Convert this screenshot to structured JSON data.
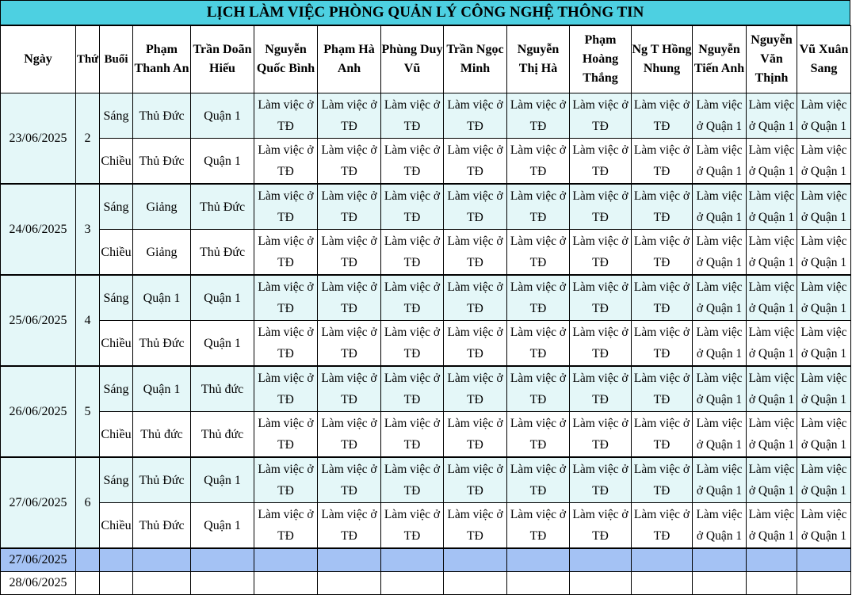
{
  "title": "LỊCH LÀM VIỆC PHÒNG QUẢN LÝ CÔNG NGHỆ THÔNG TIN",
  "headers": [
    "Ngày",
    "Thứ",
    "Buổi",
    "Phạm Thanh An",
    "Trần Doãn Hiếu",
    "Nguyễn Quốc Bình",
    "Phạm Hà Anh",
    "Phùng Duy Vũ",
    "Trần Ngọc Minh",
    "Nguyễn Thị Hà",
    "Phạm Hoàng Thắng",
    "Ng T Hồng Nhung",
    "Nguyễn Tiến Anh",
    "Nguyễn Văn Thịnh",
    "Vũ Xuân Sang"
  ],
  "days": [
    {
      "date": "23/06/2025",
      "thu": "2",
      "sessions": [
        {
          "buoi": "Sáng",
          "an": "Thủ Đức",
          "hieu": "Quận 1"
        },
        {
          "buoi": "Chiều",
          "an": "Thủ Đức",
          "hieu": "Quận 1"
        }
      ]
    },
    {
      "date": "24/06/2025",
      "thu": "3",
      "sessions": [
        {
          "buoi": "Sáng",
          "an": "Giảng",
          "hieu": "Thủ Đức"
        },
        {
          "buoi": "Chiều",
          "an": "Giảng",
          "hieu": "Thủ Đức"
        }
      ]
    },
    {
      "date": "25/06/2025",
      "thu": "4",
      "sessions": [
        {
          "buoi": "Sáng",
          "an": "Quận 1",
          "hieu": "Quận 1"
        },
        {
          "buoi": "Chiều",
          "an": "Thủ Đức",
          "hieu": "Quận 1"
        }
      ]
    },
    {
      "date": "26/06/2025",
      "thu": "5",
      "sessions": [
        {
          "buoi": "Sáng",
          "an": "Quận 1",
          "hieu": "Thủ đức"
        },
        {
          "buoi": "Chiều",
          "an": "Thủ đức",
          "hieu": "Thủ đức"
        }
      ]
    },
    {
      "date": "27/06/2025",
      "thu": "6",
      "sessions": [
        {
          "buoi": "Sáng",
          "an": "Thủ Đức",
          "hieu": "Quận 1"
        },
        {
          "buoi": "Chiều",
          "an": "Thủ Đức",
          "hieu": "Quận 1"
        }
      ]
    }
  ],
  "work_td": "Làm việc ở TĐ",
  "work_q1": "Làm việc ở Quận 1",
  "extra_rows": [
    "27/06/2025",
    "28/06/2025"
  ],
  "colors": {
    "title_bg": "#4dd0e1",
    "cell_cyan": "#e4f7f8",
    "blue_row": "#a4c2f4"
  }
}
